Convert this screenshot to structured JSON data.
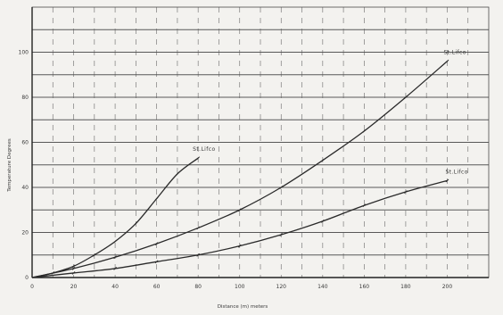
{
  "chart_data": {
    "type": "line",
    "title": "",
    "xlabel": "Distance (m) meters",
    "ylabel": "Temperature Degrees",
    "xlim": [
      0,
      220
    ],
    "ylim": [
      0,
      120
    ],
    "x_ticks": [
      0,
      20,
      40,
      60,
      80,
      100,
      120,
      140,
      160,
      180,
      200
    ],
    "x_tick_labels": [
      "0",
      "20",
      "40",
      "60",
      "80",
      "100",
      "120",
      "140",
      "160",
      "180",
      "200"
    ],
    "y_ticks": [
      0,
      20,
      40,
      60,
      80,
      100
    ],
    "y_tick_labels": [
      "0",
      "20",
      "40",
      "60",
      "80",
      "100"
    ],
    "grid": true,
    "series": [
      {
        "name": "St.Lifco",
        "x": [
          0,
          10,
          20,
          30,
          40,
          50,
          60,
          70,
          80
        ],
        "y": [
          0,
          2,
          5,
          10,
          16,
          24,
          35,
          46,
          53
        ]
      },
      {
        "name": "St.Lifco",
        "x": [
          0,
          20,
          40,
          60,
          80,
          100,
          120,
          140,
          160,
          180,
          200
        ],
        "y": [
          0,
          4,
          9,
          15,
          22,
          30,
          40,
          52,
          65,
          80,
          96
        ]
      },
      {
        "name": "St.Lifco",
        "x": [
          0,
          20,
          40,
          60,
          80,
          100,
          120,
          140,
          160,
          180,
          200
        ],
        "y": [
          0,
          2,
          4,
          7,
          10,
          14,
          19,
          25,
          32,
          38,
          43
        ]
      }
    ]
  }
}
